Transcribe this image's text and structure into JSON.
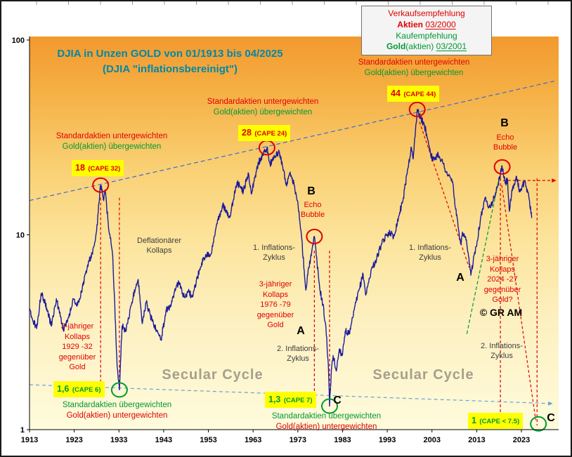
{
  "title": {
    "line1": "DJIA in Unzen GOLD von 01/1913 bis 04/2025",
    "line2": "(DJIA \"inflationsbereinigt\")"
  },
  "legend": {
    "sell_label": "Verkaufsempfehlung",
    "sell_asset": "Aktien",
    "sell_date": "03/2000",
    "buy_label": "Kaufempfehlung",
    "buy_asset": "Gold",
    "buy_asset_suffix": "(aktien)",
    "buy_date": "03/2001"
  },
  "annotations": {
    "under_over": {
      "line1": "Standardaktien untergewichten",
      "line2": "Gold(aktien) übergewichten"
    },
    "over_under": {
      "line1": "Standardaktien übergewichten",
      "line2": "Gold(aktien) untergewichten"
    },
    "cape_18": {
      "value": "18",
      "cape": "(CAPE 32)"
    },
    "cape_28": {
      "value": "28",
      "cape": "(CAPE 24)"
    },
    "cape_44": {
      "value": "44",
      "cape": "(CAPE 44)"
    },
    "cape_16": {
      "value": "1,6",
      "cape": "(CAPE 6)"
    },
    "cape_13": {
      "value": "1,3",
      "cape": "(CAPE 7)"
    },
    "cape_1": {
      "value": "1",
      "cape": "(CAPE < 7.5)"
    },
    "deflation": "Deflationärer\nKollaps",
    "inflation1": "1. Inflations-\nZyklus",
    "inflation2": "2. Inflations-\nZyklus",
    "collapse_1929": "3-jähriger\nKollaps\n1929 -32\ngegenüber\nGold",
    "collapse_1976": "3-jähriger\nKollaps\n1976 -79\ngegenüber\nGold",
    "collapse_2024": "3-jähriger\nKollaps\n2024 -27\ngegenüber\nGold?",
    "echo_bubble": "Echo\nBubble",
    "secular": "Secular Cycle",
    "marker_a": "A",
    "marker_b": "B",
    "marker_c": "C",
    "copyright": "© GR AM"
  },
  "axis": {
    "y_ticks": [
      "100",
      "10",
      "1"
    ],
    "y_values": [
      100,
      10,
      1
    ],
    "x_ticks": [
      "1913",
      "1923",
      "1933",
      "1943",
      "1953",
      "1963",
      "1973",
      "1983",
      "1993",
      "2003",
      "2013",
      "2023"
    ]
  },
  "colors": {
    "line": "#1a1a9c",
    "red": "#e10000",
    "green": "#009933",
    "title": "#0088a8",
    "label_bg": "#ffff00"
  },
  "chart_data": {
    "type": "line",
    "title": "DJIA in Unzen GOLD von 01/1913 bis 04/2025 (DJIA inflationsbereinigt)",
    "series_name": "DJIA priced in ounces of gold",
    "y_scale": "log",
    "ylim": [
      1,
      100
    ],
    "x_range": [
      1913,
      2031
    ],
    "line_color": "#1a1a9c",
    "points": [
      [
        1913.0,
        4.2
      ],
      [
        1913.8,
        3.6
      ],
      [
        1914.6,
        3.3
      ],
      [
        1915.6,
        5.0
      ],
      [
        1916.5,
        4.5
      ],
      [
        1917.9,
        3.4
      ],
      [
        1919.0,
        4.7
      ],
      [
        1920.6,
        3.2
      ],
      [
        1921.5,
        3.6
      ],
      [
        1922.8,
        4.7
      ],
      [
        1923.6,
        4.3
      ],
      [
        1924.8,
        5.3
      ],
      [
        1926.0,
        7.0
      ],
      [
        1927.0,
        8.0
      ],
      [
        1928.0,
        10.5
      ],
      [
        1928.9,
        18.0
      ],
      [
        1929.6,
        15.0
      ],
      [
        1929.9,
        17.0
      ],
      [
        1930.6,
        11.5
      ],
      [
        1931.6,
        7.8
      ],
      [
        1932.6,
        2.1
      ],
      [
        1933.1,
        1.6
      ],
      [
        1933.7,
        3.4
      ],
      [
        1934.6,
        3.2
      ],
      [
        1935.8,
        4.4
      ],
      [
        1936.9,
        5.6
      ],
      [
        1937.3,
        5.9
      ],
      [
        1938.2,
        3.5
      ],
      [
        1939.1,
        4.5
      ],
      [
        1940.4,
        3.6
      ],
      [
        1941.5,
        3.2
      ],
      [
        1942.4,
        2.9
      ],
      [
        1943.6,
        4.1
      ],
      [
        1944.6,
        4.3
      ],
      [
        1945.7,
        5.3
      ],
      [
        1946.4,
        5.7
      ],
      [
        1947.6,
        4.8
      ],
      [
        1948.5,
        5.1
      ],
      [
        1949.4,
        4.8
      ],
      [
        1950.5,
        6.0
      ],
      [
        1951.5,
        7.2
      ],
      [
        1952.5,
        7.8
      ],
      [
        1953.6,
        8.0
      ],
      [
        1954.8,
        11.2
      ],
      [
        1956.2,
        14.2
      ],
      [
        1957.8,
        12.3
      ],
      [
        1959.4,
        18.6
      ],
      [
        1960.8,
        16.6
      ],
      [
        1961.9,
        20.8
      ],
      [
        1962.6,
        16.2
      ],
      [
        1964.2,
        23.5
      ],
      [
        1965.2,
        25.5
      ],
      [
        1966.1,
        28.0
      ],
      [
        1966.8,
        23.0
      ],
      [
        1967.8,
        25.5
      ],
      [
        1968.9,
        26.5
      ],
      [
        1969.8,
        21.5
      ],
      [
        1970.5,
        17.8
      ],
      [
        1971.3,
        21.0
      ],
      [
        1972.2,
        18.0
      ],
      [
        1972.9,
        15.0
      ],
      [
        1973.8,
        10.0
      ],
      [
        1974.8,
        5.2
      ],
      [
        1975.4,
        6.8
      ],
      [
        1976.0,
        7.8
      ],
      [
        1976.7,
        9.8
      ],
      [
        1977.3,
        7.2
      ],
      [
        1977.9,
        5.3
      ],
      [
        1978.6,
        4.4
      ],
      [
        1979.3,
        3.3
      ],
      [
        1979.8,
        2.2
      ],
      [
        1980.1,
        1.32
      ],
      [
        1980.5,
        2.0
      ],
      [
        1980.9,
        2.4
      ],
      [
        1981.6,
        2.0
      ],
      [
        1982.3,
        2.6
      ],
      [
        1982.9,
        2.4
      ],
      [
        1983.6,
        3.2
      ],
      [
        1984.6,
        3.1
      ],
      [
        1985.6,
        4.1
      ],
      [
        1986.7,
        5.2
      ],
      [
        1987.6,
        6.3
      ],
      [
        1988.2,
        4.9
      ],
      [
        1989.5,
        6.7
      ],
      [
        1990.4,
        7.3
      ],
      [
        1991.6,
        8.8
      ],
      [
        1992.8,
        9.9
      ],
      [
        1993.6,
        10.4
      ],
      [
        1994.4,
        9.7
      ],
      [
        1995.6,
        12.5
      ],
      [
        1996.6,
        15.5
      ],
      [
        1997.6,
        22.0
      ],
      [
        1998.4,
        28.0
      ],
      [
        1998.8,
        24.5
      ],
      [
        1999.3,
        34.0
      ],
      [
        1999.7,
        44.0
      ],
      [
        2000.4,
        40.0
      ],
      [
        2001.2,
        37.0
      ],
      [
        2001.8,
        33.0
      ],
      [
        2002.6,
        27.0
      ],
      [
        2003.2,
        24.0
      ],
      [
        2004.4,
        26.0
      ],
      [
        2005.4,
        23.5
      ],
      [
        2006.4,
        20.5
      ],
      [
        2007.6,
        18.8
      ],
      [
        2008.3,
        13.5
      ],
      [
        2008.9,
        10.8
      ],
      [
        2009.4,
        9.0
      ],
      [
        2009.9,
        10.2
      ],
      [
        2010.6,
        9.4
      ],
      [
        2011.0,
        8.2
      ],
      [
        2011.7,
        6.2
      ],
      [
        2012.4,
        7.8
      ],
      [
        2013.1,
        9.3
      ],
      [
        2013.9,
        12.3
      ],
      [
        2015.0,
        15.6
      ],
      [
        2015.8,
        13.9
      ],
      [
        2016.6,
        14.8
      ],
      [
        2017.6,
        17.5
      ],
      [
        2018.7,
        22.3
      ],
      [
        2019.4,
        18.3
      ],
      [
        2019.9,
        19.2
      ],
      [
        2020.3,
        13.2
      ],
      [
        2020.8,
        16.2
      ],
      [
        2021.4,
        18.0
      ],
      [
        2021.9,
        20.0
      ],
      [
        2022.6,
        16.6
      ],
      [
        2023.2,
        18.0
      ],
      [
        2023.9,
        18.5
      ],
      [
        2024.4,
        16.5
      ],
      [
        2024.8,
        15.0
      ],
      [
        2025.3,
        12.2
      ]
    ],
    "markers": [
      {
        "x": 1928.9,
        "v": 18,
        "kind": "peak"
      },
      {
        "x": 1966.1,
        "v": 28,
        "kind": "peak"
      },
      {
        "x": 1999.7,
        "v": 44,
        "kind": "peak"
      },
      {
        "x": 1976.7,
        "v": 9.8,
        "kind": "echo-bubble"
      },
      {
        "x": 2018.7,
        "v": 22.3,
        "kind": "echo-bubble"
      },
      {
        "x": 1933.1,
        "v": 1.6,
        "kind": "trough"
      },
      {
        "x": 1980.1,
        "v": 1.32,
        "kind": "trough"
      },
      {
        "x": 2026.8,
        "v": 1.07,
        "kind": "trough-projected"
      }
    ],
    "lines": [
      {
        "from": [
          1913,
          15.0
        ],
        "to": [
          2031,
          62.0
        ],
        "color": "#3a6bd6",
        "dash": "6,4",
        "arrow": false
      },
      {
        "from": [
          1913,
          1.7
        ],
        "to": [
          2030,
          1.36
        ],
        "color": "#66a3d6",
        "dash": "5,4",
        "arrow": true
      },
      {
        "from": [
          2010.8,
          3.1
        ],
        "to": [
          2018.1,
          20.0
        ],
        "color": "#009933",
        "dash": "5,3",
        "arrow": false
      },
      {
        "from": [
          1928.9,
          15.5
        ],
        "to": [
          1928.9,
          1.7
        ],
        "color": "#e10000",
        "dash": "4,3",
        "arrow": false
      },
      {
        "from": [
          1933.1,
          15.5
        ],
        "to": [
          1933.1,
          1.7
        ],
        "color": "#e10000",
        "dash": "4,3",
        "arrow": false
      },
      {
        "from": [
          1976.7,
          8.3
        ],
        "to": [
          1976.7,
          1.45
        ],
        "color": "#e10000",
        "dash": "4,3",
        "arrow": false
      },
      {
        "from": [
          1980.1,
          8.3
        ],
        "to": [
          1980.1,
          1.45
        ],
        "color": "#e10000",
        "dash": "4,3",
        "arrow": false
      },
      {
        "from": [
          2000.2,
          38.0
        ],
        "to": [
          2011.3,
          6.8
        ],
        "color": "#e10000",
        "dash": "4,3",
        "arrow": false
      },
      {
        "from": [
          2018.3,
          19.5
        ],
        "to": [
          2018.3,
          1.05
        ],
        "color": "#e10000",
        "dash": "4,3",
        "arrow": false
      },
      {
        "from": [
          2026.5,
          19.5
        ],
        "to": [
          2026.5,
          1.05
        ],
        "color": "#e10000",
        "dash": "4,3",
        "arrow": false
      },
      {
        "from": [
          2018.6,
          18.0
        ],
        "to": [
          2026.2,
          1.12
        ],
        "color": "#e10000",
        "dash": "4,3",
        "arrow": false
      },
      {
        "from": [
          2018.9,
          19.0
        ],
        "to": [
          2030.8,
          19.0
        ],
        "color": "#e10000",
        "dash": "4,3",
        "arrow": true
      }
    ]
  }
}
